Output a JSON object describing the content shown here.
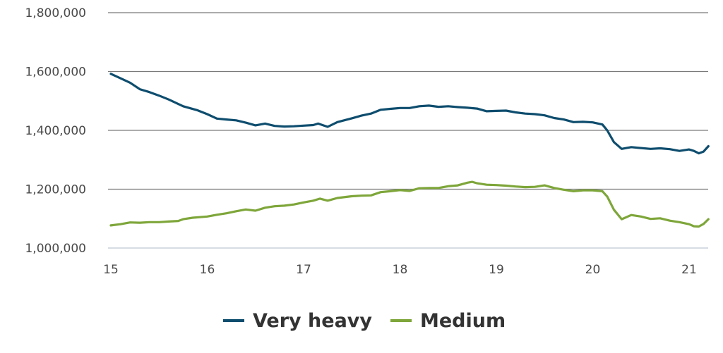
{
  "chart_data": {
    "type": "line",
    "title": "",
    "xlabel": "",
    "ylabel": "",
    "xlim": [
      15,
      21.2
    ],
    "ylim": [
      1000000,
      1800000
    ],
    "x_ticks": [
      "15",
      "16",
      "17",
      "18",
      "19",
      "20",
      "21"
    ],
    "y_ticks": [
      "1,000,000",
      "1,200,000",
      "1,400,000",
      "1,600,000",
      "1,800,000"
    ],
    "grid": "horizontal",
    "legend_position": "bottom",
    "series": [
      {
        "name": "Very heavy",
        "color": "#0e4d6e",
        "points": [
          [
            15.0,
            1592000
          ],
          [
            15.1,
            1577000
          ],
          [
            15.2,
            1562000
          ],
          [
            15.3,
            1540000
          ],
          [
            15.4,
            1530000
          ],
          [
            15.5,
            1518000
          ],
          [
            15.6,
            1505000
          ],
          [
            15.75,
            1482000
          ],
          [
            15.9,
            1468000
          ],
          [
            16.0,
            1455000
          ],
          [
            16.1,
            1440000
          ],
          [
            16.2,
            1437000
          ],
          [
            16.3,
            1434000
          ],
          [
            16.4,
            1426000
          ],
          [
            16.5,
            1417000
          ],
          [
            16.6,
            1423000
          ],
          [
            16.7,
            1415000
          ],
          [
            16.8,
            1413000
          ],
          [
            16.9,
            1414000
          ],
          [
            17.0,
            1416000
          ],
          [
            17.1,
            1418000
          ],
          [
            17.15,
            1423000
          ],
          [
            17.25,
            1412000
          ],
          [
            17.35,
            1428000
          ],
          [
            17.5,
            1441000
          ],
          [
            17.6,
            1450000
          ],
          [
            17.7,
            1457000
          ],
          [
            17.8,
            1470000
          ],
          [
            17.9,
            1473000
          ],
          [
            18.0,
            1476000
          ],
          [
            18.1,
            1476000
          ],
          [
            18.2,
            1482000
          ],
          [
            18.3,
            1484000
          ],
          [
            18.4,
            1480000
          ],
          [
            18.5,
            1482000
          ],
          [
            18.6,
            1479000
          ],
          [
            18.7,
            1477000
          ],
          [
            18.8,
            1474000
          ],
          [
            18.9,
            1465000
          ],
          [
            19.0,
            1466000
          ],
          [
            19.1,
            1467000
          ],
          [
            19.2,
            1461000
          ],
          [
            19.3,
            1457000
          ],
          [
            19.4,
            1455000
          ],
          [
            19.5,
            1451000
          ],
          [
            19.6,
            1442000
          ],
          [
            19.7,
            1437000
          ],
          [
            19.8,
            1428000
          ],
          [
            19.9,
            1429000
          ],
          [
            20.0,
            1427000
          ],
          [
            20.1,
            1420000
          ],
          [
            20.15,
            1400000
          ],
          [
            20.22,
            1360000
          ],
          [
            20.3,
            1337000
          ],
          [
            20.4,
            1343000
          ],
          [
            20.5,
            1340000
          ],
          [
            20.6,
            1337000
          ],
          [
            20.7,
            1339000
          ],
          [
            20.8,
            1336000
          ],
          [
            20.9,
            1330000
          ],
          [
            21.0,
            1335000
          ],
          [
            21.05,
            1330000
          ],
          [
            21.1,
            1322000
          ],
          [
            21.15,
            1328000
          ],
          [
            21.2,
            1346000
          ]
        ]
      },
      {
        "name": "Medium",
        "color": "#7ea63a",
        "points": [
          [
            15.0,
            1077000
          ],
          [
            15.1,
            1081000
          ],
          [
            15.2,
            1087000
          ],
          [
            15.3,
            1086000
          ],
          [
            15.4,
            1088000
          ],
          [
            15.5,
            1088000
          ],
          [
            15.6,
            1090000
          ],
          [
            15.7,
            1092000
          ],
          [
            15.75,
            1098000
          ],
          [
            15.85,
            1103000
          ],
          [
            16.0,
            1107000
          ],
          [
            16.1,
            1113000
          ],
          [
            16.2,
            1118000
          ],
          [
            16.3,
            1125000
          ],
          [
            16.4,
            1131000
          ],
          [
            16.5,
            1127000
          ],
          [
            16.6,
            1137000
          ],
          [
            16.7,
            1142000
          ],
          [
            16.8,
            1144000
          ],
          [
            16.9,
            1148000
          ],
          [
            17.0,
            1155000
          ],
          [
            17.1,
            1161000
          ],
          [
            17.17,
            1168000
          ],
          [
            17.25,
            1161000
          ],
          [
            17.35,
            1170000
          ],
          [
            17.5,
            1176000
          ],
          [
            17.6,
            1178000
          ],
          [
            17.7,
            1179000
          ],
          [
            17.8,
            1190000
          ],
          [
            17.9,
            1193000
          ],
          [
            18.0,
            1197000
          ],
          [
            18.1,
            1194000
          ],
          [
            18.2,
            1203000
          ],
          [
            18.3,
            1204000
          ],
          [
            18.4,
            1204000
          ],
          [
            18.5,
            1210000
          ],
          [
            18.6,
            1213000
          ],
          [
            18.7,
            1222000
          ],
          [
            18.75,
            1225000
          ],
          [
            18.8,
            1220000
          ],
          [
            18.9,
            1215000
          ],
          [
            19.0,
            1214000
          ],
          [
            19.1,
            1212000
          ],
          [
            19.2,
            1209000
          ],
          [
            19.3,
            1207000
          ],
          [
            19.4,
            1208000
          ],
          [
            19.5,
            1213000
          ],
          [
            19.6,
            1204000
          ],
          [
            19.7,
            1198000
          ],
          [
            19.8,
            1193000
          ],
          [
            19.9,
            1196000
          ],
          [
            20.0,
            1196000
          ],
          [
            20.1,
            1193000
          ],
          [
            20.15,
            1175000
          ],
          [
            20.22,
            1130000
          ],
          [
            20.3,
            1098000
          ],
          [
            20.4,
            1112000
          ],
          [
            20.5,
            1107000
          ],
          [
            20.6,
            1099000
          ],
          [
            20.7,
            1101000
          ],
          [
            20.8,
            1093000
          ],
          [
            20.9,
            1088000
          ],
          [
            21.0,
            1081000
          ],
          [
            21.05,
            1074000
          ],
          [
            21.1,
            1073000
          ],
          [
            21.15,
            1082000
          ],
          [
            21.2,
            1098000
          ]
        ]
      }
    ]
  }
}
